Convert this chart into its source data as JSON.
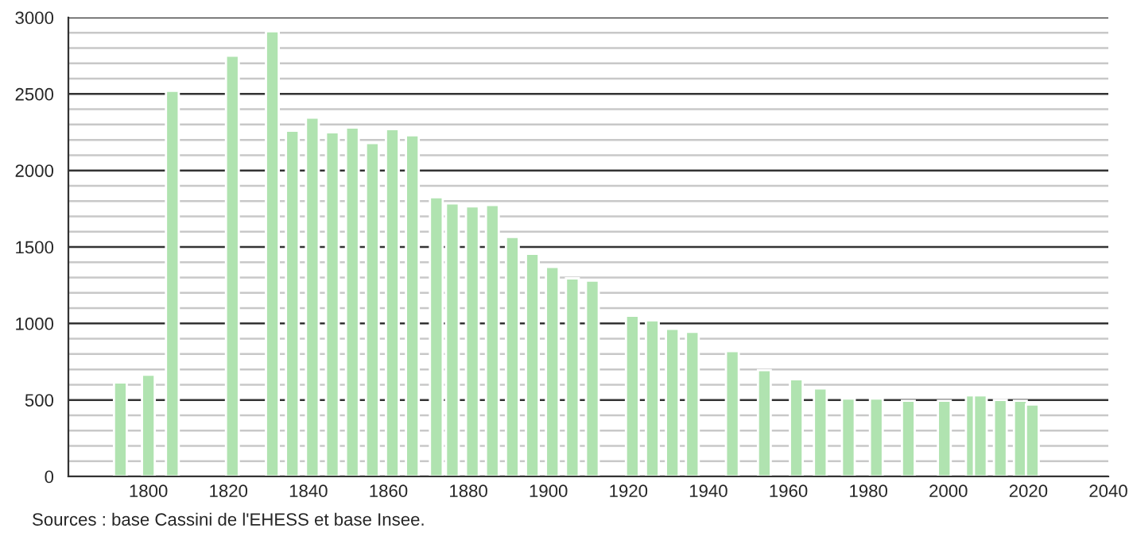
{
  "chart_data": {
    "type": "bar",
    "x": [
      1793,
      1800,
      1806,
      1821,
      1831,
      1836,
      1841,
      1846,
      1851,
      1856,
      1861,
      1866,
      1872,
      1876,
      1881,
      1886,
      1891,
      1896,
      1901,
      1906,
      1911,
      1921,
      1926,
      1931,
      1936,
      1946,
      1954,
      1962,
      1968,
      1975,
      1982,
      1990,
      1999,
      2006,
      2008,
      2013,
      2018,
      2021
    ],
    "values": [
      615,
      665,
      2520,
      2750,
      2910,
      2260,
      2345,
      2250,
      2280,
      2180,
      2270,
      2230,
      1825,
      1785,
      1765,
      1775,
      1565,
      1455,
      1370,
      1295,
      1280,
      1050,
      1020,
      965,
      945,
      820,
      695,
      635,
      575,
      510,
      510,
      495,
      495,
      530,
      530,
      500,
      495,
      470
    ],
    "color": "#b0e3b0",
    "xlim": [
      1780,
      2040
    ],
    "xticks": [
      1800,
      1820,
      1840,
      1860,
      1880,
      1900,
      1920,
      1940,
      1960,
      1980,
      2000,
      2020,
      2040
    ],
    "ylim": [
      0,
      3000
    ],
    "yticks": [
      0,
      {
        "value": 100,
        "label": null
      },
      {
        "value": 200,
        "label": null
      },
      {
        "value": 300,
        "label": null
      },
      {
        "value": 400,
        "label": null
      },
      500,
      {
        "value": 600,
        "label": null
      },
      {
        "value": 700,
        "label": null
      },
      {
        "value": 800,
        "label": null
      },
      {
        "value": 900,
        "label": null
      },
      1000,
      {
        "value": 1100,
        "label": null
      },
      {
        "value": 1200,
        "label": null
      },
      {
        "value": 1300,
        "label": null
      },
      {
        "value": 1400,
        "label": null
      },
      1500,
      {
        "value": 1600,
        "label": null
      },
      {
        "value": 1700,
        "label": null
      },
      {
        "value": 1800,
        "label": null
      },
      {
        "value": 1900,
        "label": null
      },
      2000,
      {
        "value": 2100,
        "label": null
      },
      {
        "value": 2200,
        "label": null
      },
      {
        "value": 2300,
        "label": null
      },
      {
        "value": 2400,
        "label": null
      },
      2500,
      {
        "value": 2600,
        "label": null
      },
      {
        "value": 2700,
        "label": null
      },
      {
        "value": 2800,
        "label": null
      },
      {
        "value": 2900,
        "label": null
      },
      3000
    ],
    "grid": "y",
    "annotations": [
      "Sources : base Cassini de l'EHESS et base Insee."
    ]
  }
}
